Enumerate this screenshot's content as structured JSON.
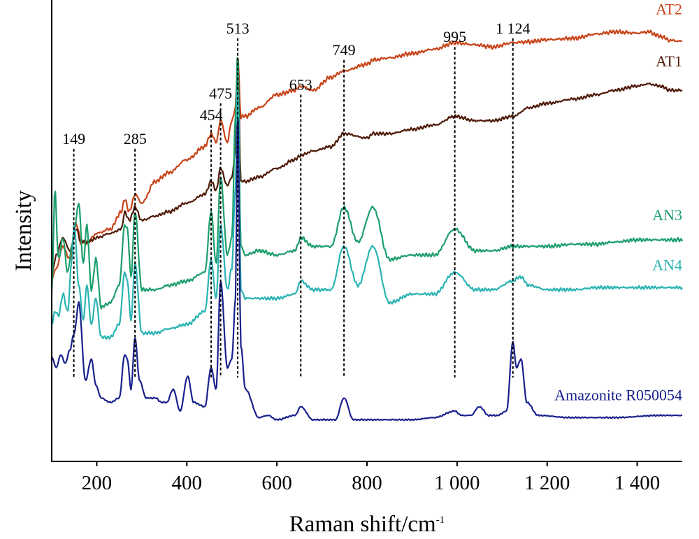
{
  "chart_data": {
    "type": "line",
    "xlabel": "Raman shift/cm",
    "xlabel_superscript": "-1",
    "ylabel": "Intensity",
    "xlim": [
      100,
      1500
    ],
    "ylim": [
      0,
      100
    ],
    "grid": false,
    "x_ticks": [
      200,
      400,
      600,
      800,
      1000,
      1200,
      1400
    ],
    "x_tick_labels": [
      "200",
      "400",
      "600",
      "800",
      "1 000",
      "1 200",
      "1 400"
    ],
    "peak_markers": [
      {
        "x": 149,
        "label": "149",
        "y_top": 70.5
      },
      {
        "x": 285,
        "label": "285",
        "y_top": 70.5
      },
      {
        "x": 454,
        "label": "454",
        "y_top": 76.0
      },
      {
        "x": 475,
        "label": "475",
        "y_top": 81.0
      },
      {
        "x": 513,
        "label": "513",
        "y_top": 96.0
      },
      {
        "x": 653,
        "label": "653",
        "y_top": 83.0
      },
      {
        "x": 749,
        "label": "749",
        "y_top": 91.0
      },
      {
        "x": 995,
        "label": "995",
        "y_top": 94.0
      },
      {
        "x": 1124,
        "label": "1 124",
        "y_top": 96.0
      }
    ],
    "series": [
      {
        "name": "AT2",
        "color": "#c8441a",
        "noise": 0.55,
        "x": [
          100,
          110,
          125,
          140,
          155,
          165,
          180,
          200,
          230,
          255,
          262,
          272,
          285,
          300,
          330,
          360,
          400,
          440,
          454,
          465,
          475,
          490,
          500,
          508,
          513,
          520,
          530,
          560,
          600,
          640,
          653,
          680,
          720,
          749,
          800,
          813,
          850,
          900,
          950,
          995,
          1040,
          1080,
          1124,
          1160,
          1200,
          1260,
          1310,
          1350,
          1400,
          1425,
          1450,
          1475,
          1500
        ],
        "y": [
          40.5,
          43,
          48,
          45,
          53,
          49,
          49,
          51,
          52,
          56,
          59,
          56,
          60,
          58,
          63,
          65,
          68,
          71,
          74,
          72,
          77,
          72,
          77,
          80,
          92,
          78,
          78,
          80,
          83,
          84,
          85,
          84,
          87,
          88.5,
          90,
          91,
          91.5,
          92.5,
          93.5,
          95,
          94.5,
          94,
          95,
          95.2,
          95.7,
          96,
          97,
          97.5,
          97.2,
          97.5,
          96.5,
          95.5,
          95.3
        ]
      },
      {
        "name": "AT1",
        "color": "#4f1a08",
        "noise": 0.45,
        "x": [
          100,
          110,
          125,
          140,
          155,
          165,
          180,
          200,
          230,
          255,
          262,
          272,
          285,
          300,
          330,
          360,
          400,
          440,
          454,
          465,
          475,
          490,
          500,
          508,
          513,
          520,
          530,
          560,
          600,
          640,
          653,
          680,
          720,
          749,
          800,
          813,
          850,
          900,
          950,
          995,
          1040,
          1080,
          1124,
          1160,
          1200,
          1260,
          1310,
          1350,
          1400,
          1425,
          1450,
          1475,
          1500
        ],
        "y": [
          41.5,
          46,
          50,
          47,
          52,
          49,
          49,
          50,
          51,
          52,
          56,
          54,
          57,
          54,
          55,
          56,
          58,
          60,
          63,
          61,
          66,
          62,
          64,
          70,
          92,
          63,
          63,
          64,
          66,
          68,
          69,
          70,
          71,
          74,
          73,
          74,
          74,
          75,
          76,
          78,
          77,
          77,
          78,
          80,
          81,
          82,
          83,
          84,
          85,
          85.5,
          85,
          84,
          84
        ]
      },
      {
        "name": "AN3",
        "color": "#1c9e6c",
        "noise": 0.5,
        "x": [
          100,
          107,
          115,
          125,
          135,
          145,
          150,
          160,
          170,
          178,
          188,
          198,
          210,
          230,
          250,
          262,
          268,
          276,
          285,
          300,
          330,
          360,
          400,
          440,
          454,
          465,
          475,
          490,
          500,
          508,
          513,
          520,
          530,
          560,
          600,
          640,
          653,
          680,
          720,
          749,
          780,
          813,
          850,
          900,
          950,
          995,
          1040,
          1080,
          1124,
          1160,
          1200,
          1260,
          1310,
          1350,
          1400,
          1450,
          1500
        ],
        "y": [
          37,
          61,
          45,
          50,
          42,
          48,
          52,
          58,
          44,
          53,
          38,
          45,
          34,
          35,
          39,
          53,
          52,
          41,
          56,
          38,
          38,
          39,
          40,
          42,
          56,
          44,
          64,
          46,
          50,
          78,
          93,
          48,
          46,
          47,
          46,
          47,
          50,
          48,
          48,
          57,
          49,
          57,
          45,
          46,
          46,
          52,
          47,
          47,
          48,
          48,
          48,
          48.5,
          48.5,
          49,
          49.5,
          49.5,
          49.5
        ]
      },
      {
        "name": "AN4",
        "color": "#2bb3b3",
        "noise": 0.45,
        "x": [
          100,
          107,
          115,
          125,
          135,
          145,
          150,
          160,
          170,
          178,
          188,
          198,
          210,
          230,
          250,
          262,
          268,
          276,
          285,
          300,
          330,
          360,
          400,
          440,
          454,
          465,
          475,
          490,
          500,
          508,
          513,
          520,
          530,
          560,
          600,
          640,
          653,
          680,
          720,
          749,
          780,
          813,
          850,
          900,
          950,
          995,
          1040,
          1080,
          1124,
          1140,
          1160,
          1200,
          1260,
          1310,
          1350,
          1400,
          1450,
          1500
        ],
        "y": [
          30,
          33,
          32,
          37,
          33,
          45,
          53,
          39,
          31,
          39,
          30,
          36,
          27,
          27,
          30,
          42,
          40,
          31,
          44,
          28,
          28,
          29,
          30,
          33,
          45,
          36,
          53,
          38,
          43,
          62,
          86,
          38,
          36,
          36,
          36,
          37,
          40,
          38,
          38,
          48,
          39,
          48,
          35,
          37,
          37,
          42,
          38,
          38,
          40,
          41,
          39,
          38,
          38,
          38.5,
          38.5,
          38.5,
          38.5,
          38.5
        ]
      },
      {
        "name": "Amazonite R050054",
        "color": "#18218c",
        "noise": 0.18,
        "x": [
          100,
          110,
          120,
          130,
          140,
          150,
          160,
          175,
          188,
          198,
          210,
          230,
          250,
          262,
          268,
          276,
          285,
          295,
          310,
          330,
          345,
          355,
          370,
          385,
          402,
          415,
          440,
          454,
          465,
          475,
          490,
          500,
          508,
          513,
          520,
          530,
          560,
          580,
          600,
          640,
          653,
          680,
          710,
          730,
          749,
          770,
          800,
          813,
          850,
          900,
          950,
          995,
          1010,
          1030,
          1050,
          1070,
          1090,
          1110,
          1124,
          1132,
          1142,
          1155,
          1180,
          1250,
          1350,
          1450,
          1500
        ],
        "y": [
          22.5,
          20,
          23,
          21,
          24,
          28,
          35,
          17,
          22,
          16,
          13,
          12,
          13,
          23,
          22,
          15,
          27,
          17,
          13,
          13,
          12,
          12,
          15,
          10,
          18,
          12,
          11,
          20,
          15,
          40,
          20,
          22,
          36,
          80,
          25,
          15,
          8.5,
          9,
          8,
          9,
          11,
          8,
          8,
          8,
          13,
          8,
          8,
          8,
          8,
          8,
          8.5,
          10,
          9,
          9,
          11,
          9,
          9,
          10,
          26,
          20,
          22,
          12,
          9,
          8.5,
          8.5,
          9,
          9
        ]
      }
    ],
    "series_labels": [
      {
        "text": "AT2",
        "color": "#c8441a",
        "x": 976,
        "y": 101.5,
        "anchor": "end"
      },
      {
        "text": "AT1",
        "color": "#4f1a08",
        "x": 976,
        "y": 89.5,
        "anchor": "end"
      },
      {
        "text": "AN3",
        "color": "#1c9e6c",
        "x": 976,
        "y": 54,
        "anchor": "end"
      },
      {
        "text": "AN4",
        "color": "#2bb3b3",
        "x": 976,
        "y": 42.5,
        "anchor": "end"
      },
      {
        "text": "Amazonite R050054",
        "color": "#18218c",
        "x": 976,
        "y": 12.5,
        "anchor": "end"
      }
    ]
  }
}
